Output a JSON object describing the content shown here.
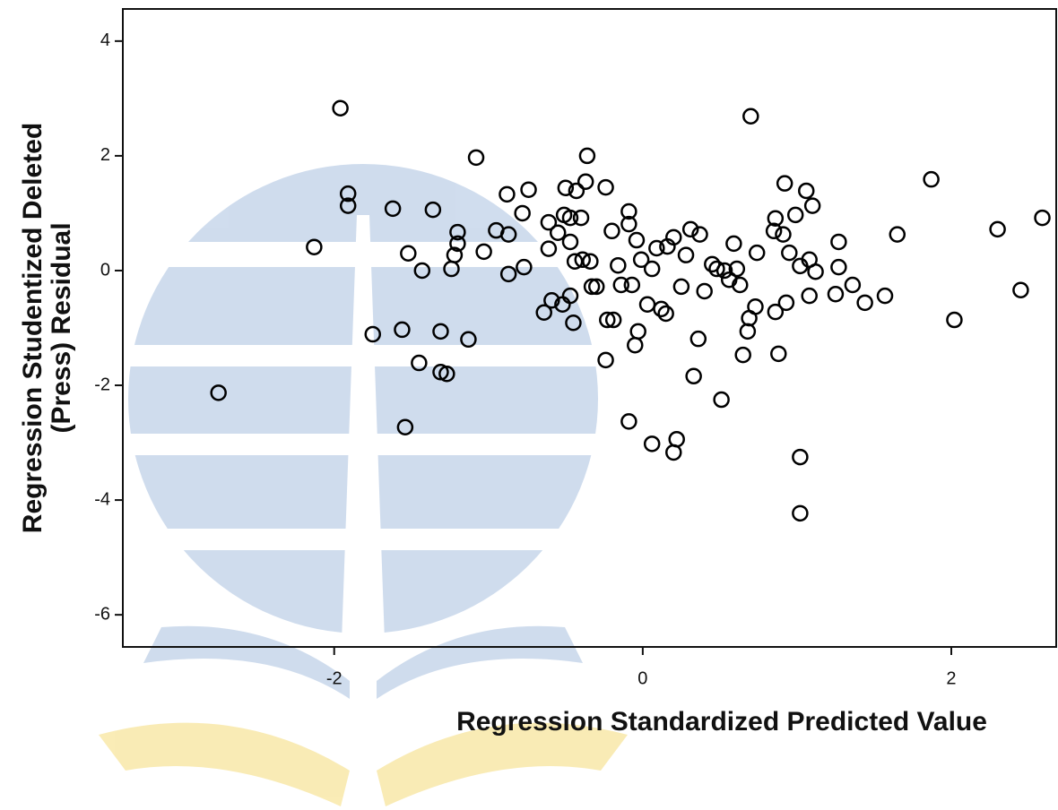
{
  "chart_data": {
    "type": "scatter",
    "xlabel": "Regression Standardized Predicted Value",
    "ylabel": [
      "Regression Studentized Deleted",
      "(Press) Residual"
    ],
    "xlim": [
      -3.37,
      2.68
    ],
    "ylim": [
      -6.56,
      4.56
    ],
    "xticks": [
      -2,
      0,
      2
    ],
    "yticks": [
      4,
      2,
      0,
      -2,
      -4,
      -6
    ],
    "series": [
      {
        "color": "#000000",
        "x": [
          -1.96,
          -1.91,
          -1.91,
          -2.13,
          -2.75,
          -1.62,
          -1.52,
          -1.43,
          -1.75,
          -1.56,
          -1.45,
          -1.54,
          -1.36,
          -1.31,
          -1.31,
          -1.27,
          -1.2,
          -1.2,
          -1.22,
          -1.24,
          -1.13,
          -1.08,
          -1.03,
          -0.95,
          -0.88,
          -0.87,
          -0.87,
          -0.78,
          -0.74,
          -0.77,
          -0.64,
          -0.61,
          -0.61,
          -0.59,
          -0.52,
          -0.51,
          -0.5,
          -0.47,
          -0.45,
          -0.47,
          -0.43,
          -0.36,
          -0.37,
          -0.47,
          -0.44,
          -0.4,
          -0.39,
          -0.34,
          -0.3,
          -0.24,
          -0.24,
          -0.23,
          -0.19,
          -0.2,
          -0.16,
          -0.09,
          -0.09,
          -0.07,
          -0.04,
          -0.03,
          -0.05,
          -0.09,
          0.06,
          0.06,
          0.09,
          0.12,
          0.15,
          0.16,
          0.2,
          0.22,
          0.2,
          0.25,
          0.28,
          0.31,
          0.36,
          0.33,
          0.37,
          0.48,
          0.51,
          0.53,
          0.59,
          0.61,
          0.63,
          0.69,
          0.68,
          0.65,
          0.7,
          0.73,
          0.74,
          0.85,
          0.86,
          0.86,
          0.88,
          0.92,
          0.91,
          0.93,
          0.95,
          0.99,
          1.02,
          1.02,
          1.02,
          1.06,
          1.1,
          1.08,
          1.08,
          1.12,
          1.25,
          1.27,
          1.27,
          1.36,
          1.44,
          1.57,
          1.65,
          1.87,
          2.02,
          2.3,
          2.45,
          2.59,
          0.45,
          0.56,
          0.4,
          0.03,
          -0.33,
          -0.55,
          -0.14,
          -0.01
        ],
        "values": [
          2.83,
          1.34,
          1.13,
          0.41,
          -2.13,
          1.08,
          0.3,
          0.0,
          -1.11,
          -1.03,
          -1.61,
          -2.73,
          1.06,
          -1.06,
          -1.77,
          -1.8,
          0.67,
          0.47,
          0.27,
          0.03,
          -1.2,
          1.97,
          0.33,
          0.7,
          1.33,
          0.63,
          -0.06,
          1.0,
          1.41,
          0.06,
          -0.73,
          0.38,
          0.84,
          -0.52,
          -0.59,
          0.97,
          1.44,
          0.92,
          -0.91,
          -0.44,
          1.39,
          2.0,
          1.55,
          0.5,
          0.16,
          0.92,
          0.19,
          0.16,
          -0.28,
          1.45,
          -1.56,
          -0.86,
          -0.86,
          0.69,
          0.09,
          1.03,
          0.81,
          -0.25,
          0.53,
          -1.06,
          -1.3,
          -2.63,
          -3.02,
          0.03,
          0.39,
          -0.67,
          -0.75,
          0.42,
          0.58,
          -2.94,
          -3.17,
          -0.28,
          0.27,
          0.72,
          -1.19,
          -1.84,
          0.63,
          0.03,
          -2.25,
          0.0,
          0.47,
          0.03,
          -0.25,
          -0.83,
          -1.06,
          -1.47,
          2.69,
          -0.63,
          0.31,
          0.69,
          0.91,
          -0.72,
          -1.45,
          1.52,
          0.63,
          -0.56,
          0.31,
          0.97,
          0.08,
          -3.25,
          -4.23,
          1.39,
          1.13,
          0.19,
          -0.44,
          -0.02,
          -0.41,
          0.5,
          0.06,
          -0.25,
          -0.56,
          -0.44,
          0.63,
          1.59,
          -0.86,
          0.72,
          -0.34,
          0.92,
          0.11,
          -0.16,
          -0.36,
          -0.59,
          -0.28,
          0.66,
          -0.25,
          0.19
        ]
      }
    ]
  }
}
